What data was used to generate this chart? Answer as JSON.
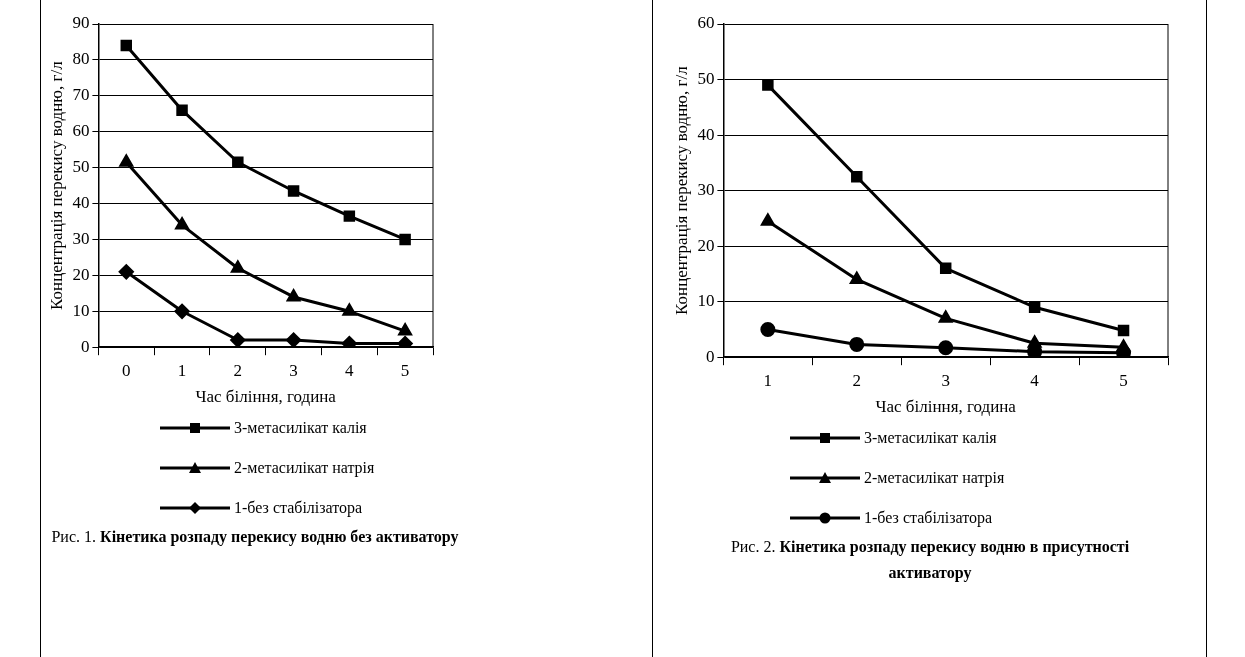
{
  "chart_data": [
    {
      "type": "line",
      "xlabel": "Час біління, година",
      "ylabel": "Концентрація перекису водню, г/л",
      "categories": [
        "0",
        "1",
        "2",
        "3",
        "4",
        "5"
      ],
      "ylim": [
        0,
        90
      ],
      "yticks": [
        0,
        10,
        20,
        30,
        40,
        50,
        60,
        70,
        80,
        90
      ],
      "grid": "y",
      "legend": "bottom",
      "line_style": "solid",
      "series": [
        {
          "name": "3-метасилікат калія",
          "color": "#000000",
          "marker": "square",
          "values": [
            84,
            66,
            51.5,
            43.5,
            36.5,
            30
          ]
        },
        {
          "name": "2-метасилікат натрія",
          "color": "#000000",
          "marker": "triangle",
          "values": [
            51.5,
            34,
            22,
            14,
            10,
            4.5
          ]
        },
        {
          "name": "1-без стабілізатора",
          "color": "#000000",
          "marker": "diamond",
          "values": [
            21,
            10,
            2,
            2,
            1,
            1
          ]
        }
      ],
      "annotations": [
        "Рис. 1.",
        "Кінетика розпаду перекису водню без активатору"
      ]
    },
    {
      "type": "line",
      "xlabel": "Час біління, година",
      "ylabel": "Концентрація перекису водню, г/л",
      "categories": [
        "1",
        "2",
        "3",
        "4",
        "5"
      ],
      "ylim": [
        0,
        60
      ],
      "yticks": [
        0,
        10,
        20,
        30,
        40,
        50,
        60
      ],
      "grid": "y",
      "legend": "bottom",
      "line_style": "solid",
      "series": [
        {
          "name": "3-метасилікат калія",
          "color": "#000000",
          "marker": "square",
          "values": [
            49,
            32.5,
            16,
            9,
            4.8
          ]
        },
        {
          "name": "2-метасилікат натрія",
          "color": "#000000",
          "marker": "triangle",
          "values": [
            24.5,
            14,
            7,
            2.5,
            1.8
          ]
        },
        {
          "name": "1-без стабілізатора",
          "color": "#000000",
          "marker": "circle",
          "values": [
            5,
            2.3,
            1.7,
            1,
            0.8
          ]
        }
      ],
      "annotations": [
        "Рис. 2.",
        "Кінетика розпаду перекису водню в присутності активатору"
      ]
    }
  ]
}
